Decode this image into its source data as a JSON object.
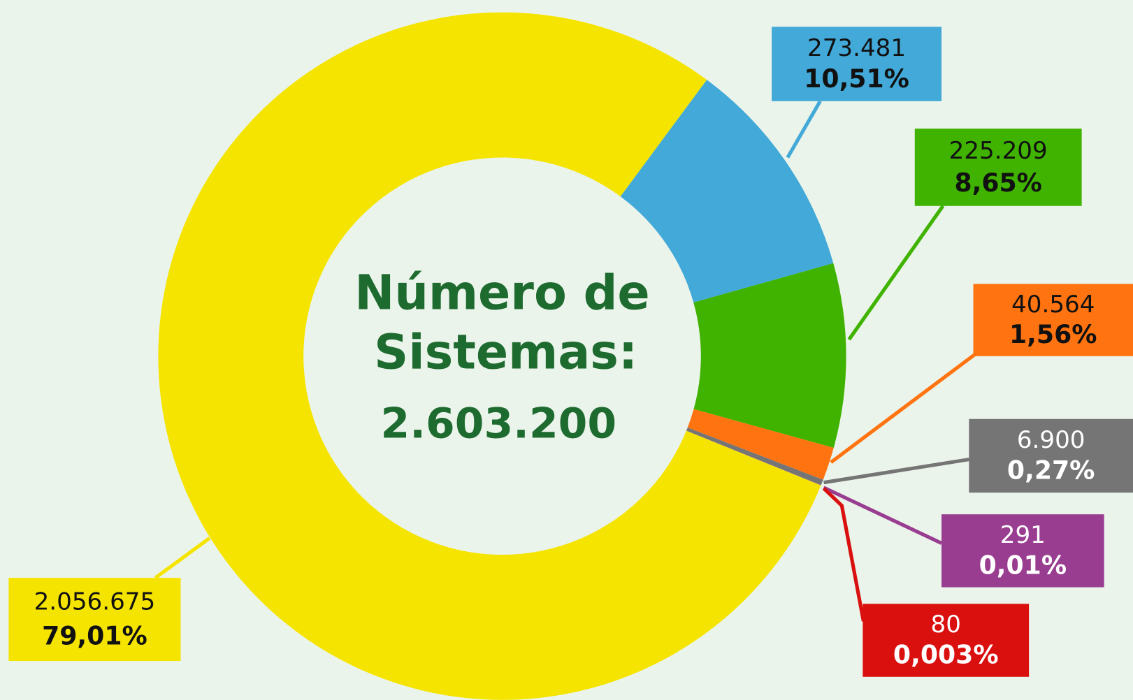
{
  "chart_data": {
    "type": "donut",
    "center_title": [
      "Número de",
      "Sistemas:"
    ],
    "total": 2603200,
    "total_label": "2.603.200",
    "values": [
      273481,
      225209,
      40564,
      6900,
      291,
      80,
      2056675
    ],
    "value_labels": [
      "273.481",
      "225.209",
      "40.564",
      "6.900",
      "291",
      "80",
      "2.056.675"
    ],
    "percentages": [
      10.51,
      8.65,
      1.56,
      0.27,
      0.01,
      0.003,
      79.01
    ],
    "percentage_labels": [
      "10,51%",
      "8,65%",
      "1,56%",
      "0,27%",
      "0,01%",
      "0,003%",
      "79,01%"
    ],
    "colors": [
      "#42a9d8",
      "#3fb300",
      "#ff7410",
      "#757575",
      "#993d91",
      "#d9100e",
      "#f5e400"
    ],
    "label_text_colors": [
      "#111111",
      "#111111",
      "#111111",
      "#ffffff",
      "#ffffff",
      "#ffffff",
      "#111111"
    ]
  }
}
